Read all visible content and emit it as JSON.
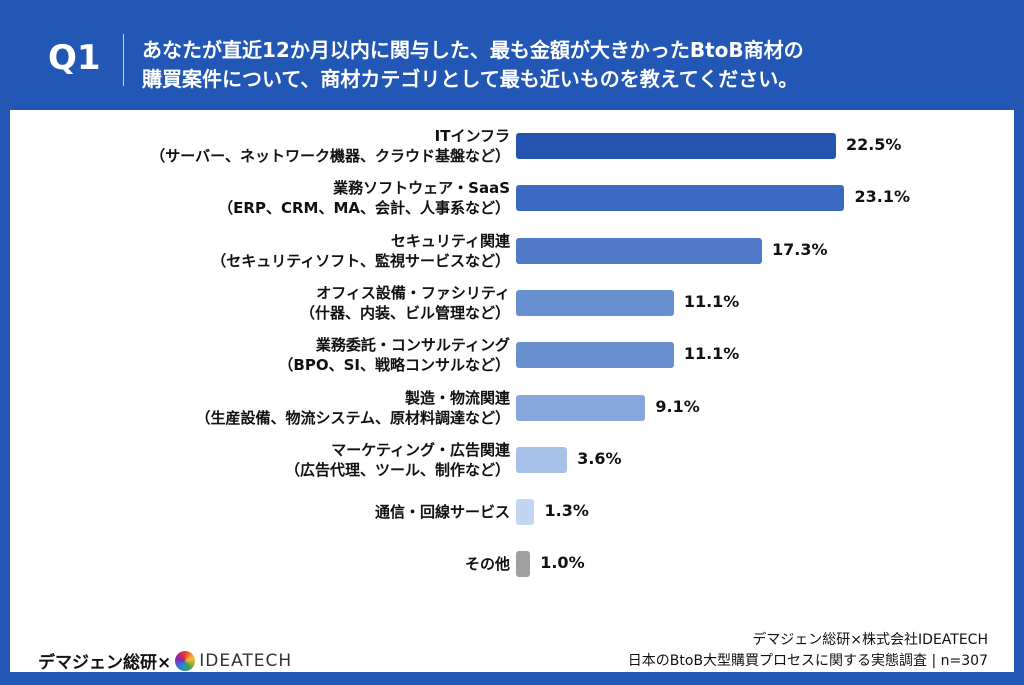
{
  "header": {
    "q": "Q1",
    "question_line1": "あなたが直近12か月以内に関与した、最も金額が大きかったBtoB商材の",
    "question_line2": "購買案件について、商材カテゴリとして最も近いものを教えてください。"
  },
  "chart_data": {
    "type": "bar",
    "orientation": "horizontal",
    "unit": "%",
    "categories": [
      {
        "line1": "ITインフラ",
        "line2": "（サーバー、ネットワーク機器、クラウド基盤など）"
      },
      {
        "line1": "業務ソフトウェア・SaaS",
        "line2": "（ERP、CRM、MA、会計、人事系など）"
      },
      {
        "line1": "セキュリティ関連",
        "line2": "（セキュリティソフト、監視サービスなど）"
      },
      {
        "line1": "オフィス設備・ファシリティ",
        "line2": "（什器、内装、ビル管理など）"
      },
      {
        "line1": "業務委託・コンサルティング",
        "line2": "（BPO、SI、戦略コンサルなど）"
      },
      {
        "line1": "製造・物流関連",
        "line2": "（生産設備、物流システム、原材料調達など）"
      },
      {
        "line1": "マーケティング・広告関連",
        "line2": "（広告代理、ツール、制作など）"
      },
      {
        "line1": "通信・回線サービス",
        "line2": ""
      },
      {
        "line1": "その他",
        "line2": ""
      }
    ],
    "values": [
      22.5,
      23.1,
      17.3,
      11.1,
      11.1,
      9.1,
      3.6,
      1.3,
      1.0
    ],
    "value_labels": [
      "22.5%",
      "23.1%",
      "17.3%",
      "11.1%",
      "11.1%",
      "9.1%",
      "3.6%",
      "1.3%",
      "1.0%"
    ],
    "colors": [
      "#2454b0",
      "#3b68c0",
      "#5079c7",
      "#6890d0",
      "#6890d0",
      "#85a7dc",
      "#a7c1e8",
      "#c3d6f1",
      "#a0a0a0"
    ]
  },
  "footer": {
    "left_brand": "デマジェン総研×",
    "left_logo": "IDEATECH",
    "source_line1": "デマジェン総研×株式会社IDEATECH",
    "source_line2": "日本のBtoB大型購買プロセスに関する実態調査 | n=307"
  }
}
